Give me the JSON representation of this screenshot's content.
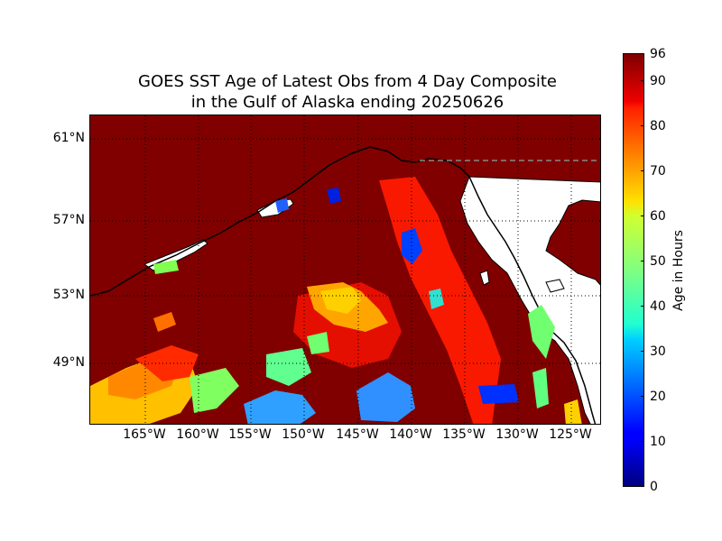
{
  "title": {
    "line1": "GOES SST Age of Latest Obs from 4 Day Composite",
    "line2": "in the Gulf of Alaska ending 20250626"
  },
  "map": {
    "lat_labels": [
      "61°N",
      "57°N",
      "53°N",
      "49°N"
    ],
    "lon_labels": [
      "165°W",
      "160°W",
      "155°W",
      "150°W",
      "145°W",
      "140°W",
      "135°W",
      "130°W",
      "125°W"
    ],
    "background_color": "#800000",
    "land_color": "#ffffff"
  },
  "colorbar": {
    "label": "Age in Hours",
    "ticks": [
      "0",
      "10",
      "20",
      "30",
      "40",
      "50",
      "60",
      "70",
      "80",
      "90",
      "96"
    ],
    "colormap": "jet"
  }
}
